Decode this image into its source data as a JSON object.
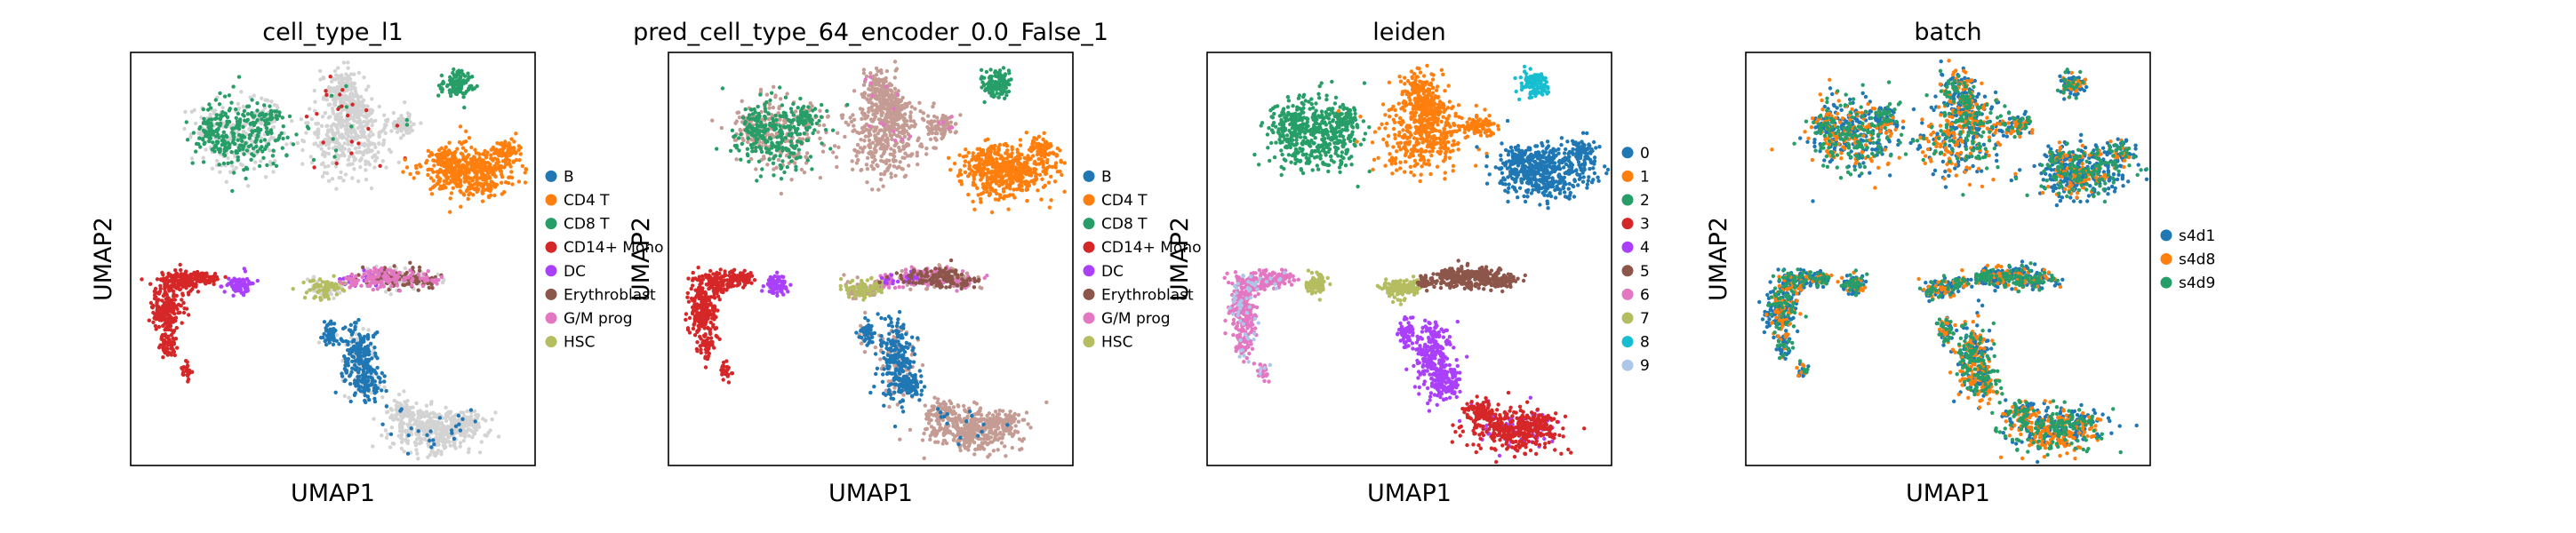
{
  "chart_data": [
    {
      "type": "scatter",
      "title": "cell_type_l1",
      "xlabel": "UMAP1",
      "ylabel": "UMAP2",
      "legend_position": "right",
      "grid": false,
      "series": [
        {
          "name": "B",
          "color": "#1f77b4"
        },
        {
          "name": "CD4 T",
          "color": "#ff7f0e"
        },
        {
          "name": "CD8 T",
          "color": "#279e68"
        },
        {
          "name": "CD14+ Mono",
          "color": "#d62728"
        },
        {
          "name": "DC",
          "color": "#aa40fc"
        },
        {
          "name": "Erythroblast",
          "color": "#8c564b"
        },
        {
          "name": "G/M prog",
          "color": "#e377c2"
        },
        {
          "name": "HSC",
          "color": "#b5bd61"
        }
      ],
      "unlisted_color": "#d3d3d3"
    },
    {
      "type": "scatter",
      "title": "pred_cell_type_64_encoder_0.0_False_1",
      "xlabel": "UMAP1",
      "ylabel": "UMAP2",
      "legend_position": "right",
      "grid": false,
      "series": [
        {
          "name": "B",
          "color": "#1f77b4"
        },
        {
          "name": "CD4 T",
          "color": "#ff7f0e"
        },
        {
          "name": "CD8 T",
          "color": "#279e68"
        },
        {
          "name": "CD14+ Mono",
          "color": "#d62728"
        },
        {
          "name": "DC",
          "color": "#aa40fc"
        },
        {
          "name": "Erythroblast",
          "color": "#8c564b"
        },
        {
          "name": "G/M prog",
          "color": "#e377c2"
        },
        {
          "name": "HSC",
          "color": "#b5bd61"
        }
      ],
      "unlisted_color": "#c49c94"
    },
    {
      "type": "scatter",
      "title": "leiden",
      "xlabel": "UMAP1",
      "ylabel": "UMAP2",
      "legend_position": "right",
      "grid": false,
      "series": [
        {
          "name": "0",
          "color": "#1f77b4"
        },
        {
          "name": "1",
          "color": "#ff7f0e"
        },
        {
          "name": "2",
          "color": "#279e68"
        },
        {
          "name": "3",
          "color": "#d62728"
        },
        {
          "name": "4",
          "color": "#aa40fc"
        },
        {
          "name": "5",
          "color": "#8c564b"
        },
        {
          "name": "6",
          "color": "#e377c2"
        },
        {
          "name": "7",
          "color": "#b5bd61"
        },
        {
          "name": "8",
          "color": "#17becf"
        },
        {
          "name": "9",
          "color": "#aec7e8"
        }
      ]
    },
    {
      "type": "scatter",
      "title": "batch",
      "xlabel": "UMAP1",
      "ylabel": "UMAP2",
      "legend_position": "right",
      "grid": false,
      "series": [
        {
          "name": "s4d1",
          "color": "#1f77b4"
        },
        {
          "name": "s4d8",
          "color": "#ff7f0e"
        },
        {
          "name": "s4d9",
          "color": "#279e68"
        }
      ]
    }
  ]
}
